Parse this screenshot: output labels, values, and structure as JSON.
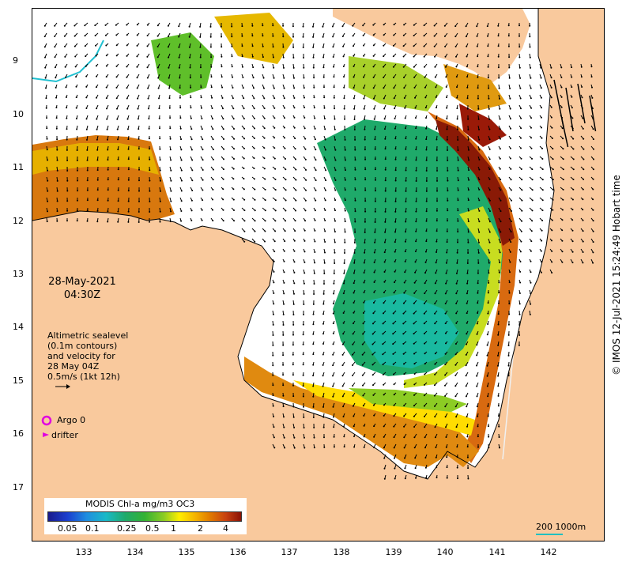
{
  "map": {
    "date_line1": "28-May-2021",
    "date_line2": "04:30Z",
    "legend_text": [
      "Altimetric sealevel",
      "(0.1m contours)",
      "and velocity for",
      "28 May 04Z",
      "0.5m/s (1kt 12h)"
    ],
    "argo_label": "Argo 0",
    "drifter_label": "drifter",
    "copyright": "© IMOS 12-Jul-2021 15:24:49 Hobart time",
    "scale_label": "200  1000m",
    "colors": {
      "land": "#f9c99d",
      "low_chl": "#1faa6a",
      "high_chl": "#b03808",
      "argo": "#e000e0",
      "shelf_line": "#20c0c0"
    }
  },
  "axes": {
    "y_labels": [
      "9",
      "10",
      "11",
      "12",
      "13",
      "14",
      "15",
      "16",
      "17"
    ],
    "x_labels": [
      "133",
      "134",
      "135",
      "136",
      "137",
      "138",
      "139",
      "140",
      "141",
      "142"
    ]
  },
  "colorbar": {
    "title": "MODIS Chl-a mg/m3 OC3",
    "ticks": [
      "0.05",
      "0.1",
      "0.25",
      "0.5",
      "1",
      "2",
      "4"
    ]
  }
}
